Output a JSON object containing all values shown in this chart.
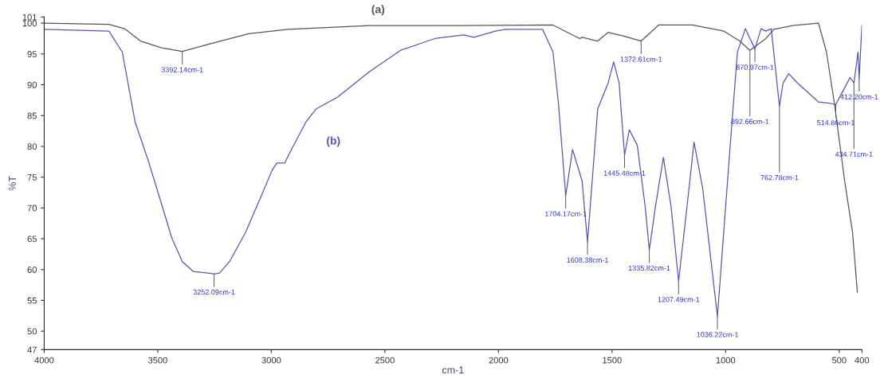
{
  "chart_data": {
    "type": "line",
    "xlabel": "cm-1",
    "ylabel": "%T",
    "xlim": [
      4000,
      400
    ],
    "ylim": [
      47,
      101
    ],
    "xticks": [
      4000,
      3500,
      3000,
      2500,
      2000,
      1500,
      1000,
      500,
      400
    ],
    "yticks": [
      47,
      50,
      55,
      60,
      65,
      70,
      75,
      80,
      85,
      90,
      95,
      100,
      101
    ],
    "grid": false,
    "legend": false,
    "marker": "none",
    "line_style": "solid",
    "series": [
      {
        "name": "(a)",
        "color": "#555555",
        "x": [
          4000,
          3715,
          3646,
          3576,
          3483,
          3392,
          3274,
          3100,
          2927,
          2569,
          2163,
          1760,
          1642,
          1632,
          1563,
          1517,
          1448,
          1372,
          1295,
          1146,
          1007,
          938,
          893,
          823,
          788,
          705,
          591,
          556,
          521,
          476,
          441,
          420
        ],
        "values": [
          100.0,
          99.8,
          99.1,
          97.1,
          96.0,
          95.4,
          96.6,
          98.3,
          99.0,
          99.6,
          99.6,
          99.7,
          97.5,
          97.7,
          97.1,
          98.5,
          97.9,
          97.1,
          99.7,
          99.7,
          98.7,
          97.1,
          95.6,
          97.5,
          99.0,
          99.6,
          100.0,
          95.3,
          87.0,
          74.4,
          66.0,
          56.3
        ]
      },
      {
        "name": "(b)",
        "color": "#5555b0",
        "x": [
          4000,
          3715,
          3656,
          3600,
          3542,
          3483,
          3438,
          3392,
          3344,
          3252,
          3229,
          3184,
          3114,
          3045,
          2997,
          2976,
          2941,
          2924,
          2847,
          2802,
          2708,
          2569,
          2431,
          2281,
          2153,
          2108,
          2014,
          1969,
          1806,
          1760,
          1736,
          1704,
          1674,
          1632,
          1608,
          1563,
          1517,
          1493,
          1469,
          1445,
          1424,
          1389,
          1354,
          1336,
          1309,
          1274,
          1240,
          1207,
          1170,
          1139,
          1101,
          1036,
          983,
          948,
          913,
          871,
          844,
          823,
          799,
          763,
          747,
          722,
          684,
          636,
          591,
          545,
          515,
          476,
          452,
          435,
          417,
          412,
          400
        ],
        "values": [
          99.0,
          98.7,
          95.3,
          84.0,
          77.7,
          70.6,
          65.1,
          61.3,
          59.7,
          59.3,
          59.4,
          61.3,
          66.0,
          71.9,
          76.1,
          77.3,
          77.3,
          78.6,
          84.0,
          86.1,
          88.0,
          92.1,
          95.6,
          97.5,
          98.1,
          97.7,
          98.7,
          99.0,
          99.0,
          95.3,
          87.0,
          72.0,
          79.5,
          74.4,
          64.5,
          86.1,
          90.3,
          93.7,
          90.3,
          78.6,
          82.7,
          80.2,
          70.2,
          63.2,
          70.2,
          78.2,
          70.2,
          58.1,
          70.2,
          80.7,
          73.2,
          52.4,
          78.6,
          95.3,
          99.1,
          95.8,
          99.1,
          98.7,
          99.1,
          86.5,
          90.3,
          91.8,
          90.3,
          88.7,
          87.2,
          87.0,
          86.8,
          89.5,
          91.2,
          90.3,
          95.3,
          91.0,
          99.7
        ]
      }
    ],
    "annotations": [
      {
        "text": "3392.14cm-1",
        "x": 3392,
        "y": 95.4
      },
      {
        "text": "3252.09cm-1",
        "x": 3252,
        "y": 59.3
      },
      {
        "text": "1372.61cm-1",
        "x": 1372,
        "y": 97.1
      },
      {
        "text": "870.97cm-1",
        "x": 871,
        "y": 95.8
      },
      {
        "text": "892.66cm-1",
        "x": 893,
        "y": 95.6
      },
      {
        "text": "762.78cm-1",
        "x": 763,
        "y": 86.5
      },
      {
        "text": "514.86cm-1",
        "x": 515,
        "y": 86.8
      },
      {
        "text": "412.20cm-1",
        "x": 412,
        "y": 91.0
      },
      {
        "text": "434.71cm-1",
        "x": 435,
        "y": 90.3
      },
      {
        "text": "1704.17cm-1",
        "x": 1704,
        "y": 72.0
      },
      {
        "text": "1608.38cm-1",
        "x": 1608,
        "y": 64.5
      },
      {
        "text": "1445.48cm-1",
        "x": 1445,
        "y": 78.6
      },
      {
        "text": "1335.82cm-1",
        "x": 1336,
        "y": 63.2
      },
      {
        "text": "1207.49cm-1",
        "x": 1207,
        "y": 58.1
      },
      {
        "text": "1036.22cm-1",
        "x": 1036,
        "y": 52.4
      }
    ]
  }
}
